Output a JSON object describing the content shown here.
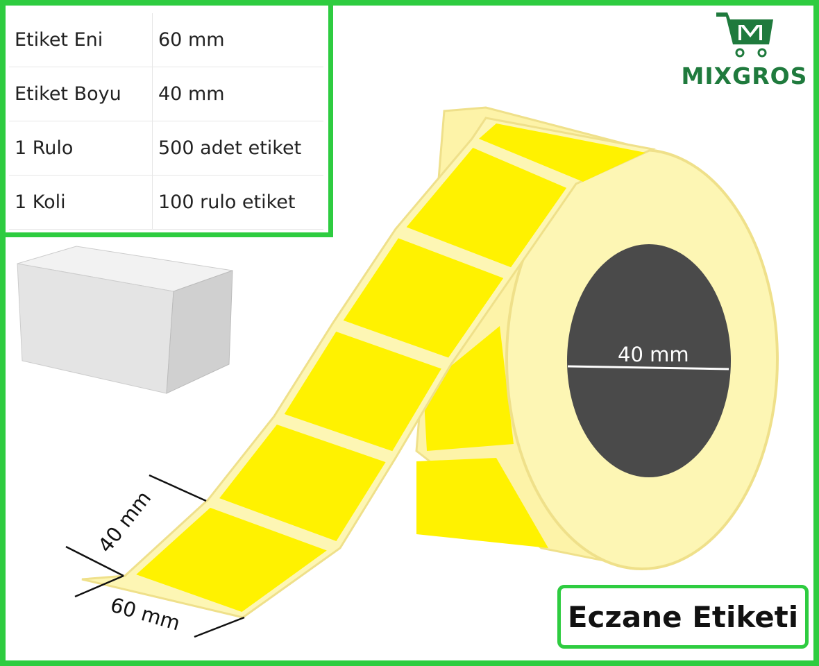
{
  "specs": [
    {
      "label": "Etiket Eni",
      "value": "60 mm"
    },
    {
      "label": "Etiket Boyu",
      "value": "40 mm"
    },
    {
      "label": "1 Rulo",
      "value": "500 adet etiket"
    },
    {
      "label": "1 Koli",
      "value": "100 rulo etiket"
    }
  ],
  "logo": {
    "text": "MIXGROS",
    "color": "#1f7a3d"
  },
  "dimensions": {
    "label_height": "40 mm",
    "label_width": "60 mm",
    "core_diameter": "40 mm"
  },
  "badge": {
    "text": "Eczane Etiketi"
  },
  "colors": {
    "border": "#2ecc40",
    "label": "#fff200",
    "liner": "#fdf6b4",
    "core": "#4a4a4a"
  }
}
